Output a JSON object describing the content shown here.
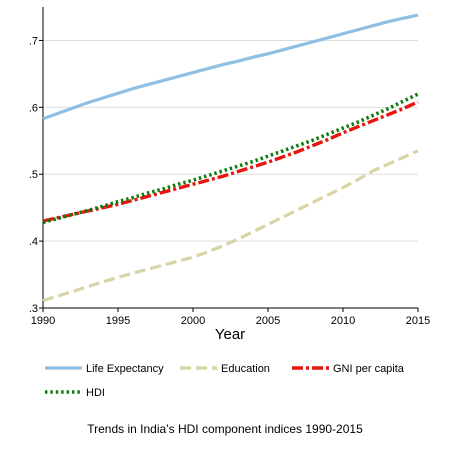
{
  "caption": "Trends in India’s HDI component indices 1990-2015",
  "chart_data": {
    "type": "line",
    "title": "",
    "xlabel": "Year",
    "ylabel": "",
    "xlim": [
      1990,
      2015
    ],
    "ylim": [
      0.3,
      0.75
    ],
    "grid": "horizontal",
    "legend_position": "bottom",
    "x_ticks": [
      1990,
      1995,
      2000,
      2005,
      2010,
      2015
    ],
    "x_tick_labels": [
      "1990",
      "1995",
      "2000",
      "2005",
      "2010",
      "2015"
    ],
    "y_ticks": [
      0.3,
      0.4,
      0.5,
      0.6,
      0.7
    ],
    "y_tick_labels": [
      ".3",
      ".4",
      ".5",
      ".6",
      ".7"
    ],
    "x": [
      1990,
      1991,
      1992,
      1993,
      1994,
      1995,
      1996,
      1997,
      1998,
      1999,
      2000,
      2001,
      2002,
      2003,
      2004,
      2005,
      2006,
      2007,
      2008,
      2009,
      2010,
      2011,
      2012,
      2013,
      2014,
      2015
    ],
    "series": [
      {
        "name": "Life Expectancy",
        "color": "#8fbfe3",
        "style": "solid",
        "values": [
          0.583,
          0.591,
          0.599,
          0.607,
          0.614,
          0.621,
          0.628,
          0.634,
          0.64,
          0.646,
          0.652,
          0.658,
          0.664,
          0.669,
          0.675,
          0.68,
          0.686,
          0.692,
          0.698,
          0.704,
          0.71,
          0.716,
          0.722,
          0.728,
          0.733,
          0.738
        ]
      },
      {
        "name": "Education",
        "color": "#d8d4a6",
        "style": "dashed",
        "values": [
          0.311,
          0.318,
          0.325,
          0.332,
          0.339,
          0.346,
          0.352,
          0.358,
          0.364,
          0.37,
          0.376,
          0.384,
          0.393,
          0.403,
          0.414,
          0.425,
          0.436,
          0.447,
          0.458,
          0.469,
          0.48,
          0.492,
          0.505,
          0.515,
          0.525,
          0.535
        ]
      },
      {
        "name": "GNI per capita",
        "color": "#e8140f",
        "style": "dashdot",
        "values": [
          0.43,
          0.435,
          0.44,
          0.445,
          0.45,
          0.455,
          0.461,
          0.467,
          0.473,
          0.479,
          0.485,
          0.491,
          0.497,
          0.504,
          0.511,
          0.518,
          0.526,
          0.534,
          0.543,
          0.552,
          0.562,
          0.571,
          0.58,
          0.589,
          0.598,
          0.608
        ]
      },
      {
        "name": "HDI",
        "color": "#0a7a0a",
        "style": "dotted",
        "values": [
          0.428,
          0.434,
          0.44,
          0.446,
          0.452,
          0.459,
          0.465,
          0.472,
          0.478,
          0.485,
          0.491,
          0.498,
          0.505,
          0.512,
          0.519,
          0.527,
          0.535,
          0.543,
          0.551,
          0.56,
          0.569,
          0.578,
          0.588,
          0.598,
          0.609,
          0.62
        ]
      }
    ]
  }
}
